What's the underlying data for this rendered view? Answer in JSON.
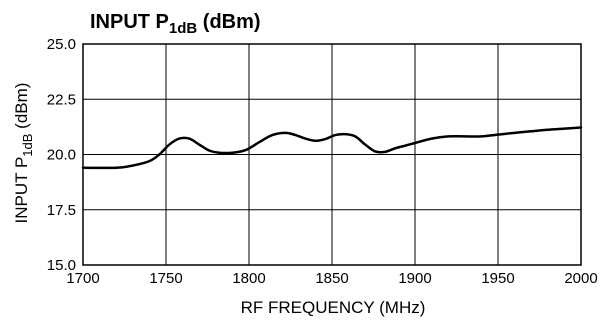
{
  "chart_data": {
    "type": "line",
    "title": {
      "main": "INPUT P",
      "sub": "1dB",
      "unit": " (dBm)"
    },
    "xlabel": "RF FREQUENCY (MHz)",
    "ylabel": {
      "main": "INPUT P",
      "sub": "1dB",
      "unit": " (dBm)"
    },
    "xlim": [
      1700,
      2000
    ],
    "ylim": [
      15.0,
      25.0
    ],
    "xticks": [
      {
        "value": 1700,
        "label": "1700"
      },
      {
        "value": 1750,
        "label": "1750"
      },
      {
        "value": 1800,
        "label": "1800"
      },
      {
        "value": 1850,
        "label": "1850"
      },
      {
        "value": 1900,
        "label": "1900"
      },
      {
        "value": 1950,
        "label": "1950"
      },
      {
        "value": 2000,
        "label": "2000"
      }
    ],
    "yticks": [
      {
        "value": 15.0,
        "label": "15.0"
      },
      {
        "value": 17.5,
        "label": "17.5"
      },
      {
        "value": 20.0,
        "label": "20.0"
      },
      {
        "value": 22.5,
        "label": "22.5"
      },
      {
        "value": 25.0,
        "label": "25.0"
      }
    ],
    "grid": true,
    "series": [
      {
        "x": [
          1700,
          1720,
          1730,
          1740,
          1746,
          1752,
          1758,
          1764,
          1770,
          1776,
          1782,
          1790,
          1798,
          1806,
          1814,
          1822,
          1828,
          1834,
          1840,
          1846,
          1852,
          1858,
          1864,
          1870,
          1876,
          1882,
          1888,
          1894,
          1900,
          1910,
          1920,
          1930,
          1940,
          1950,
          1960,
          1970,
          1980,
          1990,
          2000
        ],
        "y": [
          19.4,
          19.4,
          19.5,
          19.7,
          20.0,
          20.45,
          20.72,
          20.72,
          20.45,
          20.18,
          20.08,
          20.08,
          20.2,
          20.55,
          20.88,
          20.98,
          20.88,
          20.72,
          20.62,
          20.7,
          20.88,
          20.92,
          20.82,
          20.45,
          20.14,
          20.12,
          20.28,
          20.4,
          20.52,
          20.72,
          20.82,
          20.82,
          20.82,
          20.9,
          20.98,
          21.05,
          21.12,
          21.17,
          21.22
        ]
      }
    ]
  }
}
